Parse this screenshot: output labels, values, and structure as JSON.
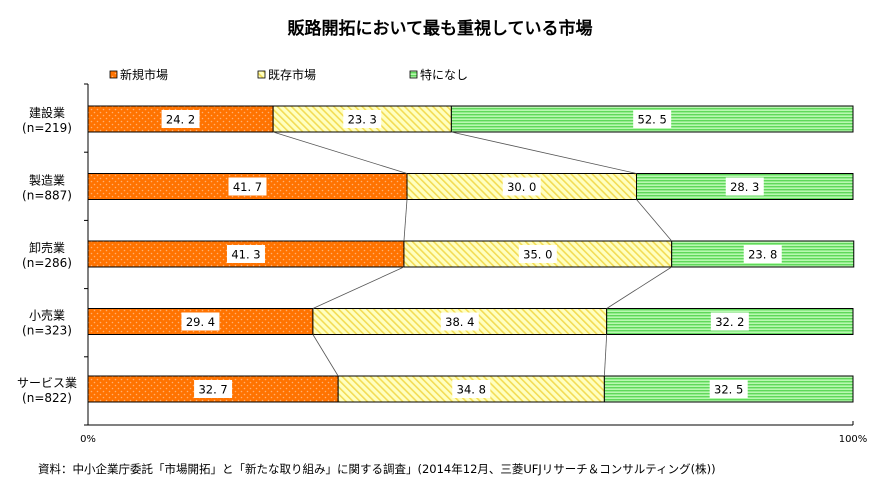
{
  "chart_data": {
    "type": "bar",
    "orientation": "horizontal",
    "stacked": "percent",
    "title": "販路開拓において最も重視している市場",
    "categories": [
      "建設業",
      "製造業",
      "卸売業",
      "小売業",
      "サービス業"
    ],
    "category_sublabels": [
      "(n=219)",
      "(n=887)",
      "(n=286)",
      "(n=323)",
      "(n=822)"
    ],
    "series": [
      {
        "name": "新規市場",
        "color": "#ff7f1e",
        "pattern": "dots",
        "values": [
          24.2,
          41.7,
          41.3,
          29.4,
          32.7
        ]
      },
      {
        "name": "既存市場",
        "color": "#ffee88",
        "pattern": "diagonal",
        "values": [
          23.3,
          30.0,
          35.0,
          38.4,
          34.8
        ]
      },
      {
        "name": "特になし",
        "color": "#88ee88",
        "pattern": "horizontal",
        "values": [
          52.5,
          28.3,
          23.8,
          32.2,
          32.5
        ]
      }
    ],
    "x_tick_labels": [
      "0%",
      "100%"
    ],
    "xlim": [
      0,
      100
    ],
    "legend": "top",
    "grid": false,
    "series_lines": true
  },
  "source": "資料：中小企業庁委託「市場開拓」と「新たな取り組み」に関する調査」(2014年12月、三菱UFJリサーチ＆コンサルティング(株))"
}
